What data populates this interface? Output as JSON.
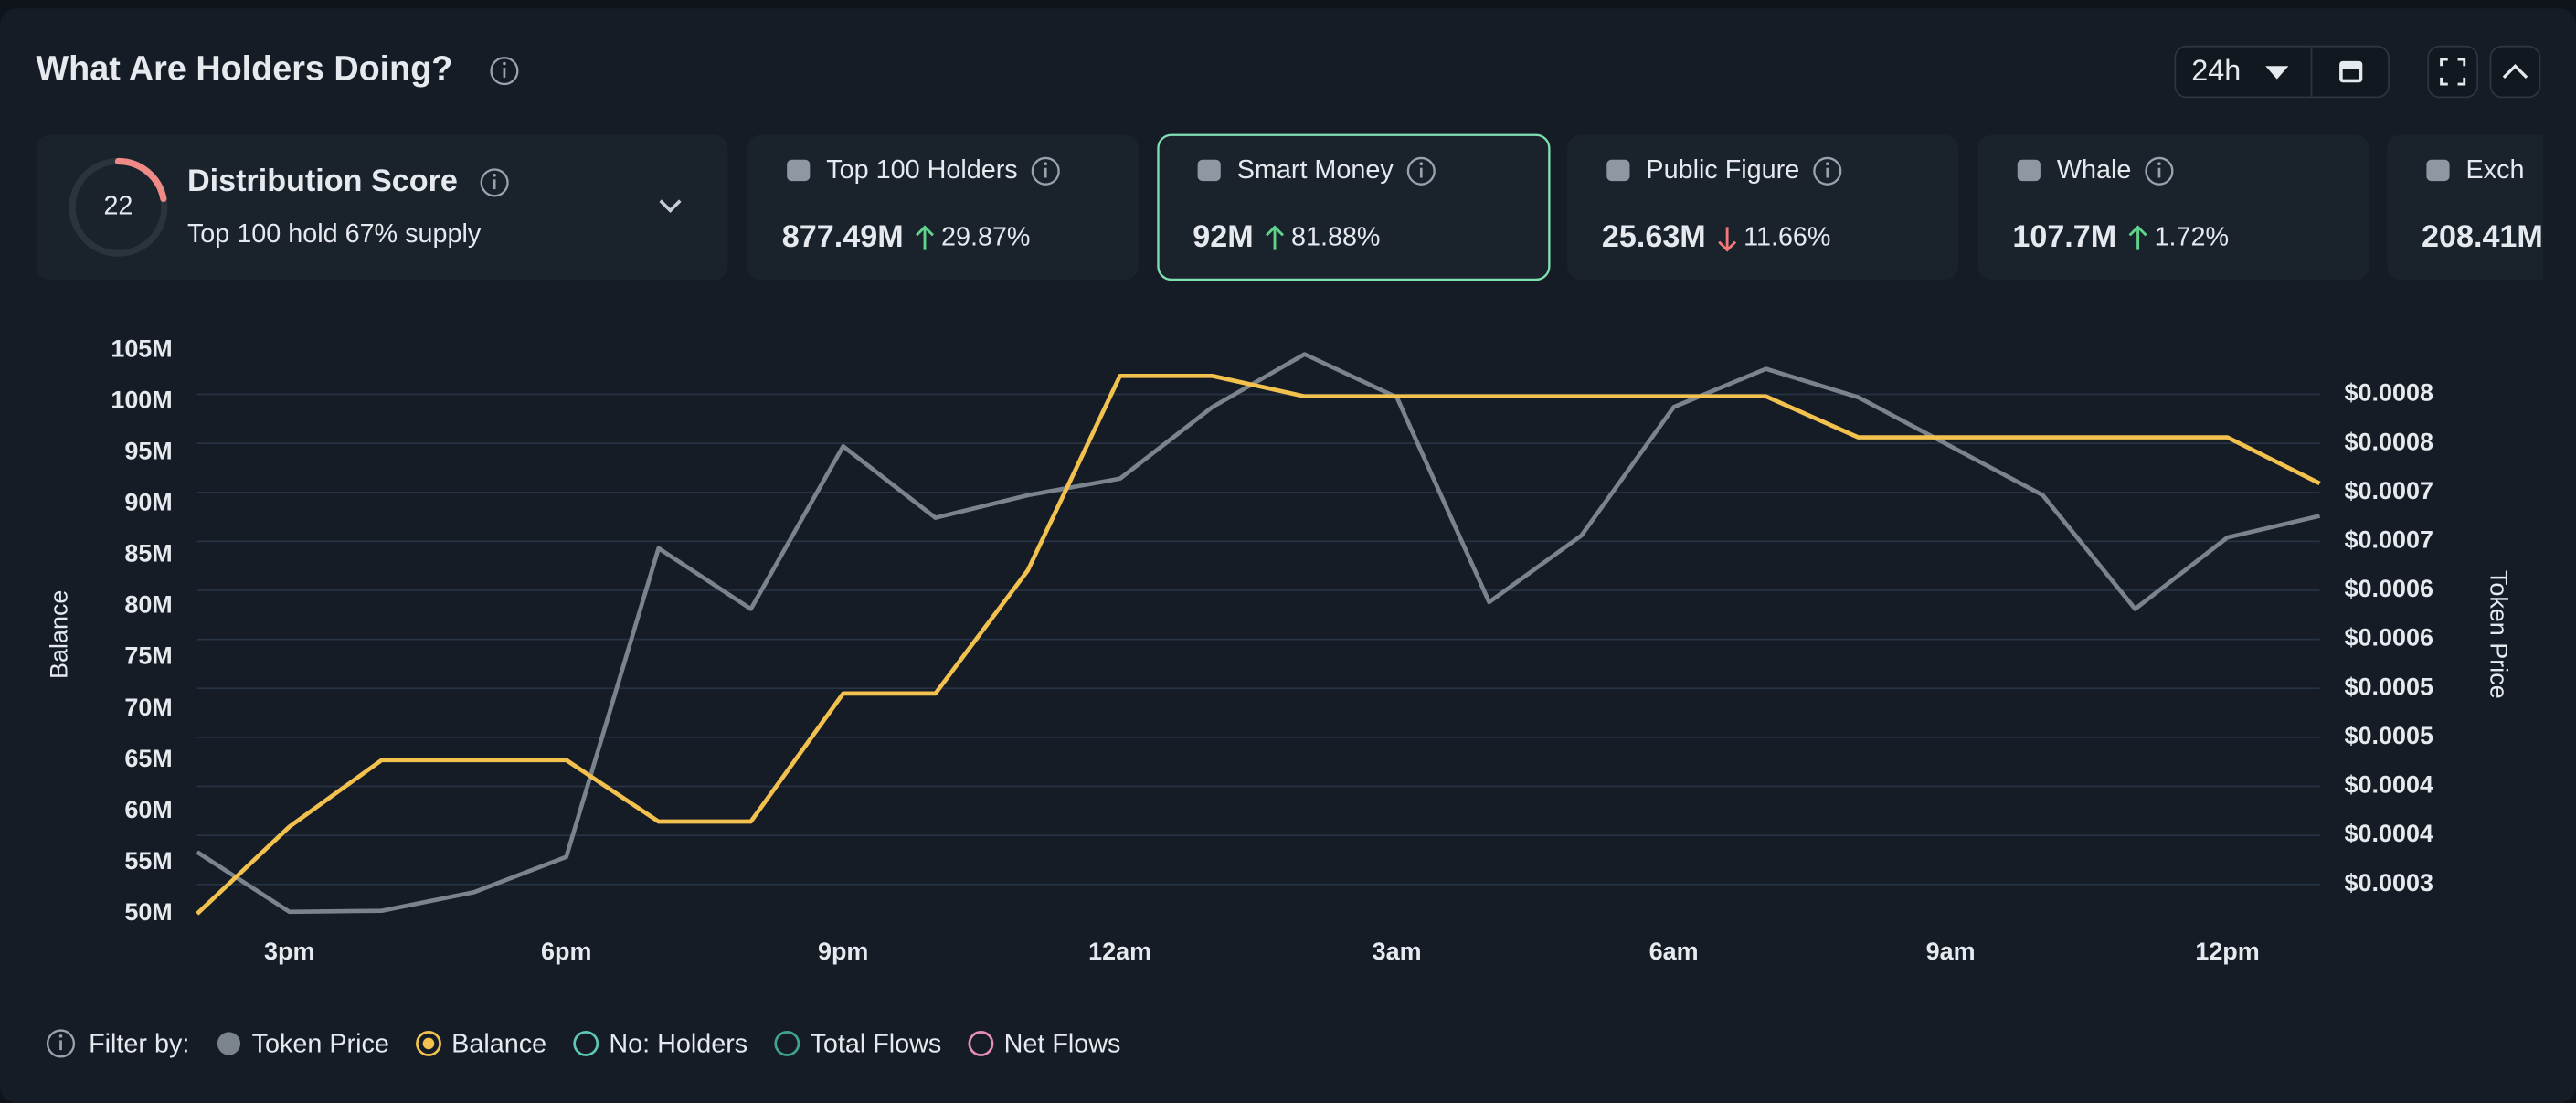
{
  "header": {
    "title": "What Are Holders Doing?",
    "range": "24h"
  },
  "score": {
    "value": 22,
    "title": "Distribution Score",
    "subtitle": "Top 100 hold 67% supply"
  },
  "cards": [
    {
      "label": "Top 100 Holders",
      "value": "877.49M",
      "change": "29.87%",
      "direction": "up",
      "selected": false
    },
    {
      "label": "Smart Money",
      "value": "92M",
      "change": "81.88%",
      "direction": "up",
      "selected": true
    },
    {
      "label": "Public Figure",
      "value": "25.63M",
      "change": "11.66%",
      "direction": "down",
      "selected": false
    },
    {
      "label": "Whale",
      "value": "107.7M",
      "change": "1.72%",
      "direction": "up",
      "selected": false
    },
    {
      "label": "Exch",
      "value": "208.41M",
      "selected": false
    }
  ],
  "chart_data": {
    "type": "line",
    "categories": [
      null,
      "3pm",
      null,
      null,
      "6pm",
      null,
      null,
      "9pm",
      null,
      null,
      "12am",
      null,
      null,
      "3am",
      null,
      null,
      "6am",
      null,
      null,
      "9am",
      null,
      null,
      "12pm",
      null
    ],
    "ylabel": "Balance",
    "y2label": "Token Price",
    "series": [
      {
        "name": "Token Price",
        "color": "#7b838d",
        "axis": "y2",
        "values": [
          0.000333,
          0.000272,
          0.000273,
          0.000292,
          0.000328,
          0.000643,
          0.000581,
          0.000747,
          0.000674,
          0.000697,
          0.000714,
          0.000787,
          0.000841,
          0.000797,
          0.000588,
          0.000656,
          0.000787,
          0.000826,
          0.000797,
          0.000747,
          0.000697,
          0.000581,
          0.000654,
          0.000676
        ]
      },
      {
        "name": "Balance",
        "color": "#f2c14e",
        "values": [
          50000000,
          58500000,
          65000000,
          65000000,
          65000000,
          59000000,
          59000000,
          71500000,
          71500000,
          83500000,
          102500000,
          102500000,
          100500000,
          100500000,
          100500000,
          100500000,
          100500000,
          100500000,
          96500000,
          96500000,
          96500000,
          96500000,
          96500000,
          92000000
        ]
      }
    ],
    "ylim": [
      50000000,
      105000000
    ],
    "yticks": [
      {
        "value": 50000000,
        "label": "50M"
      },
      {
        "value": 55000000,
        "label": "55M"
      },
      {
        "value": 60000000,
        "label": "60M"
      },
      {
        "value": 65000000,
        "label": "65M"
      },
      {
        "value": 70000000,
        "label": "70M"
      },
      {
        "value": 75000000,
        "label": "75M"
      },
      {
        "value": 80000000,
        "label": "80M"
      },
      {
        "value": 85000000,
        "label": "85M"
      },
      {
        "value": 90000000,
        "label": "90M"
      },
      {
        "value": 95000000,
        "label": "95M"
      },
      {
        "value": 100000000,
        "label": "100M"
      },
      {
        "value": 105000000,
        "label": "105M"
      }
    ],
    "y2lim": [
      0.00027,
      0.000845
    ],
    "y2ticks": [
      {
        "value": 0.0003,
        "label": "$0.0003"
      },
      {
        "value": 0.00035,
        "label": "$0.0004"
      },
      {
        "value": 0.0004,
        "label": "$0.0004"
      },
      {
        "value": 0.00045,
        "label": "$0.0005"
      },
      {
        "value": 0.0005,
        "label": "$0.0005"
      },
      {
        "value": 0.00055,
        "label": "$0.0006"
      },
      {
        "value": 0.0006,
        "label": "$0.0006"
      },
      {
        "value": 0.00065,
        "label": "$0.0007"
      },
      {
        "value": 0.0007,
        "label": "$0.0007"
      },
      {
        "value": 0.00075,
        "label": "$0.0008"
      },
      {
        "value": 0.0008,
        "label": "$0.0008"
      }
    ],
    "grid": true
  },
  "filter": {
    "label": "Filter by:",
    "extra": [
      {
        "name": "No: Holders",
        "color": "#5ec8b8"
      },
      {
        "name": "Total Flows",
        "color": "#3fa58a"
      },
      {
        "name": "Net Flows",
        "color": "#e58fb4"
      }
    ]
  }
}
